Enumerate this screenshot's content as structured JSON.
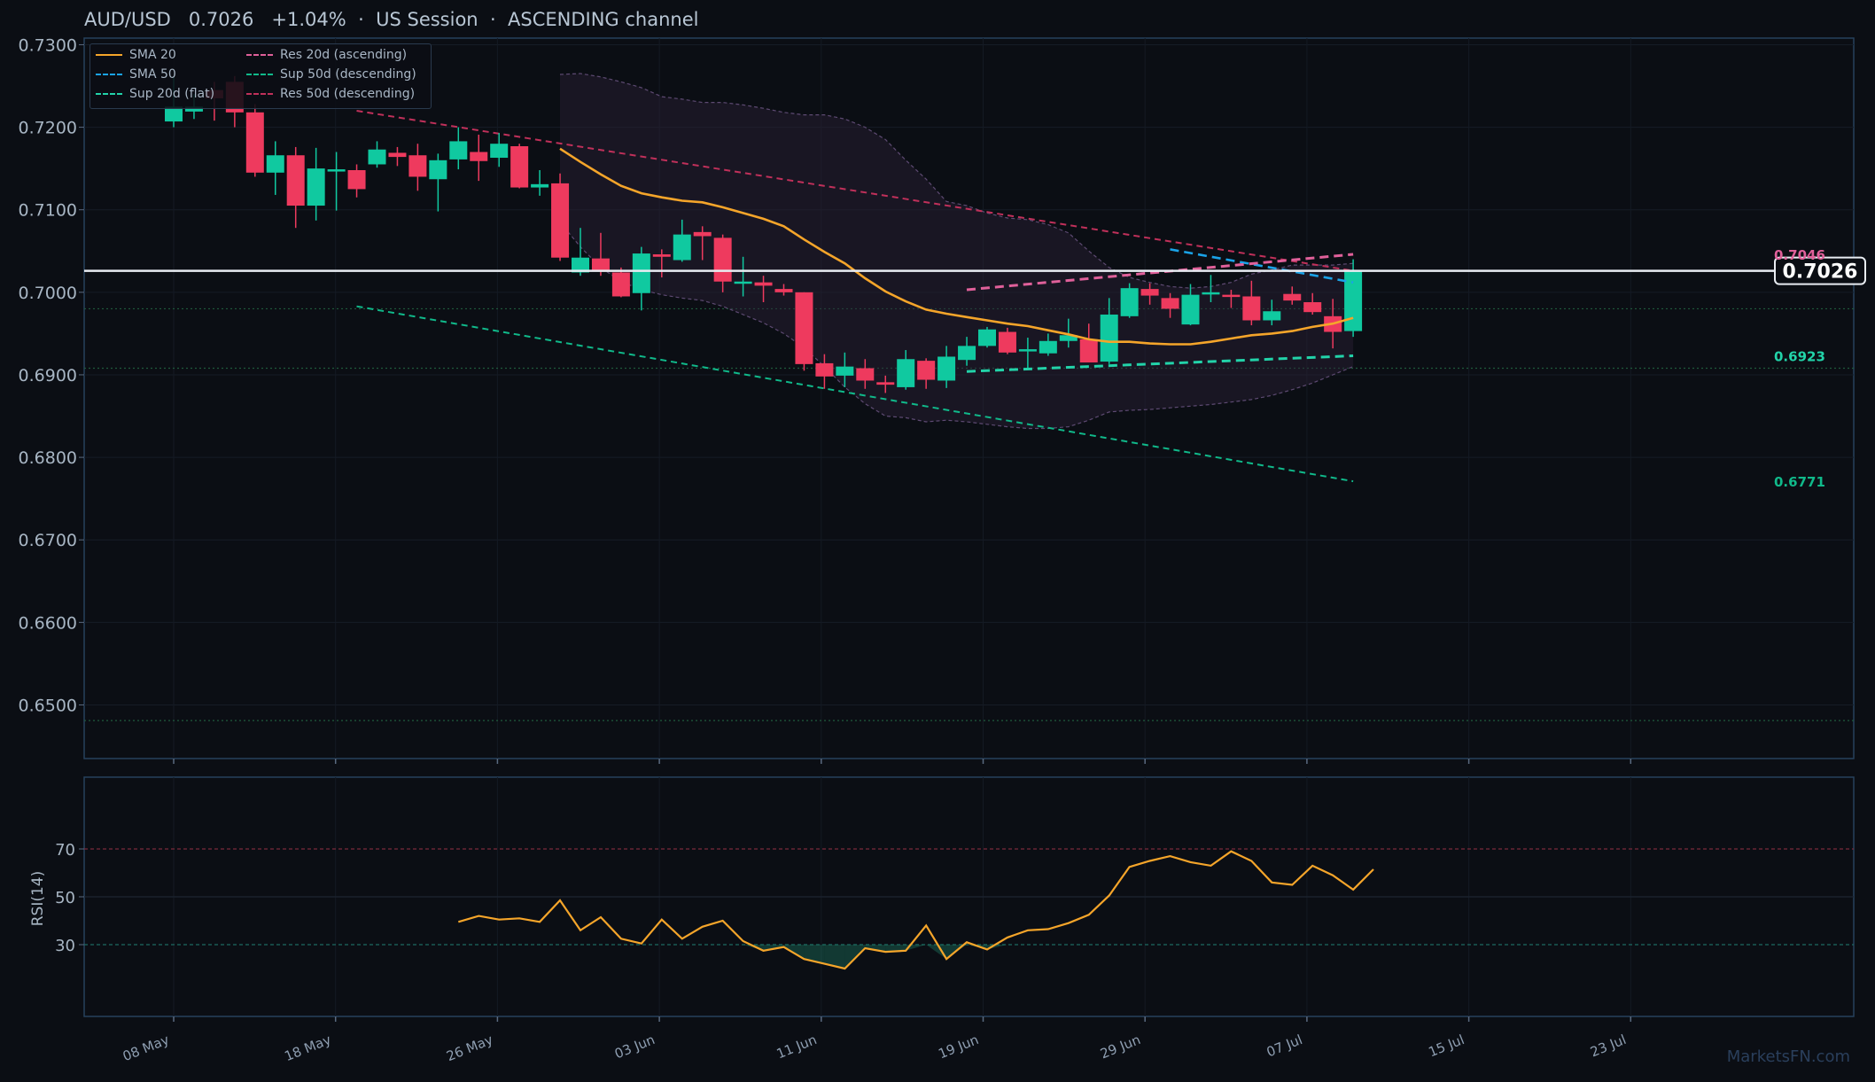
{
  "header": {
    "symbol": "AUD/USD",
    "price": "0.7026",
    "change": "+1.04%",
    "session": "US Session",
    "channel": "ASCENDING channel"
  },
  "watermark": "MarketsFN.com",
  "colors": {
    "background": "#0b0e14",
    "up": "#10c9a0",
    "down": "#ee3a5e",
    "sma20": "#f5a52a",
    "sma50": "#1aa3e8",
    "res_asc": "#e0609a",
    "sup_flat": "#22d3a9",
    "sup50_desc": "#10b98a",
    "res50_desc": "#c0305a",
    "rsi": "#f5a52a",
    "band_fill": "#2a2236"
  },
  "chart_data": {
    "type": "candlestick",
    "y_ticks": [
      "0.6500",
      "0.6600",
      "0.6700",
      "0.6800",
      "0.6900",
      "0.7000",
      "0.7100",
      "0.7200",
      "0.7300"
    ],
    "ylim": [
      0.6435,
      0.7308
    ],
    "date_ticks": [
      "08 May",
      "18 May",
      "26 May",
      "03 Jun",
      "11 Jun",
      "19 Jun",
      "29 Jun",
      "07 Jul",
      "15 Jul",
      "23 Jul"
    ],
    "last_price": 0.7026,
    "price_label": "0.7026",
    "line_labels": [
      {
        "text": "0.7046",
        "price": 0.7046,
        "series": "res_asc"
      },
      {
        "text": "0.6923",
        "price": 0.6923,
        "series": "sup_flat"
      },
      {
        "text": "0.6771",
        "price": 0.6771,
        "series": "sup50_desc"
      }
    ],
    "horizontal_levels": [
      0.698,
      0.6908,
      0.6481
    ],
    "legend": [
      {
        "label": "SMA 20",
        "key": "sma20",
        "style": "solid"
      },
      {
        "label": "SMA 50",
        "key": "sma50",
        "style": "dashed"
      },
      {
        "label": "Sup 20d (flat)",
        "key": "sup_flat",
        "style": "dashed"
      },
      {
        "label": "Res 20d (ascending)",
        "key": "res_asc",
        "style": "dashed"
      },
      {
        "label": "Sup 50d (descending)",
        "key": "sup50_desc",
        "style": "dashed"
      },
      {
        "label": "Res 50d (descending)",
        "key": "res50_desc",
        "style": "dashed"
      }
    ],
    "candles": [
      {
        "i": 0,
        "o": 0.7207,
        "h": 0.7262,
        "l": 0.72,
        "c": 0.7225
      },
      {
        "i": 1,
        "o": 0.7219,
        "h": 0.724,
        "l": 0.721,
        "c": 0.7225
      },
      {
        "i": 2,
        "o": 0.7245,
        "h": 0.7255,
        "l": 0.7208,
        "c": 0.7235
      },
      {
        "i": 3,
        "o": 0.7255,
        "h": 0.7262,
        "l": 0.72,
        "c": 0.7218
      },
      {
        "i": 4,
        "o": 0.7218,
        "h": 0.7228,
        "l": 0.714,
        "c": 0.7145
      },
      {
        "i": 5,
        "o": 0.7145,
        "h": 0.7183,
        "l": 0.7118,
        "c": 0.7166
      },
      {
        "i": 6,
        "o": 0.7166,
        "h": 0.7176,
        "l": 0.7078,
        "c": 0.7105
      },
      {
        "i": 7,
        "o": 0.7105,
        "h": 0.7175,
        "l": 0.7087,
        "c": 0.715
      },
      {
        "i": 8,
        "o": 0.7148,
        "h": 0.717,
        "l": 0.7099,
        "c": 0.7149
      },
      {
        "i": 9,
        "o": 0.7148,
        "h": 0.7155,
        "l": 0.7115,
        "c": 0.7125
      },
      {
        "i": 10,
        "o": 0.7155,
        "h": 0.7183,
        "l": 0.7151,
        "c": 0.7173
      },
      {
        "i": 11,
        "o": 0.7169,
        "h": 0.7176,
        "l": 0.7153,
        "c": 0.7164
      },
      {
        "i": 12,
        "o": 0.7166,
        "h": 0.718,
        "l": 0.7123,
        "c": 0.714
      },
      {
        "i": 13,
        "o": 0.7137,
        "h": 0.7168,
        "l": 0.7098,
        "c": 0.716
      },
      {
        "i": 14,
        "o": 0.7161,
        "h": 0.72,
        "l": 0.7149,
        "c": 0.7183
      },
      {
        "i": 15,
        "o": 0.717,
        "h": 0.7191,
        "l": 0.7135,
        "c": 0.7159
      },
      {
        "i": 16,
        "o": 0.7163,
        "h": 0.7193,
        "l": 0.7152,
        "c": 0.718
      },
      {
        "i": 17,
        "o": 0.7177,
        "h": 0.718,
        "l": 0.7126,
        "c": 0.7127
      },
      {
        "i": 18,
        "o": 0.7127,
        "h": 0.7148,
        "l": 0.7117,
        "c": 0.7131
      },
      {
        "i": 19,
        "o": 0.7132,
        "h": 0.7144,
        "l": 0.7038,
        "c": 0.7042
      },
      {
        "i": 20,
        "o": 0.7024,
        "h": 0.7078,
        "l": 0.702,
        "c": 0.7042
      },
      {
        "i": 21,
        "o": 0.7041,
        "h": 0.7072,
        "l": 0.702,
        "c": 0.7025
      },
      {
        "i": 22,
        "o": 0.7024,
        "h": 0.703,
        "l": 0.6994,
        "c": 0.6995
      },
      {
        "i": 23,
        "o": 0.6999,
        "h": 0.7055,
        "l": 0.6978,
        "c": 0.7047
      },
      {
        "i": 24,
        "o": 0.7046,
        "h": 0.7052,
        "l": 0.7018,
        "c": 0.7043
      },
      {
        "i": 25,
        "o": 0.7039,
        "h": 0.7088,
        "l": 0.7037,
        "c": 0.707
      },
      {
        "i": 26,
        "o": 0.7073,
        "h": 0.708,
        "l": 0.7039,
        "c": 0.7068
      },
      {
        "i": 27,
        "o": 0.7066,
        "h": 0.707,
        "l": 0.7,
        "c": 0.7013
      },
      {
        "i": 28,
        "o": 0.7013,
        "h": 0.7043,
        "l": 0.6995,
        "c": 0.7013
      },
      {
        "i": 29,
        "o": 0.7012,
        "h": 0.702,
        "l": 0.6988,
        "c": 0.7008
      },
      {
        "i": 30,
        "o": 0.7004,
        "h": 0.701,
        "l": 0.6996,
        "c": 0.7
      },
      {
        "i": 31,
        "o": 0.7,
        "h": 0.7,
        "l": 0.6905,
        "c": 0.6913
      },
      {
        "i": 32,
        "o": 0.6914,
        "h": 0.6925,
        "l": 0.6883,
        "c": 0.6898
      },
      {
        "i": 33,
        "o": 0.6899,
        "h": 0.6927,
        "l": 0.6885,
        "c": 0.691
      },
      {
        "i": 34,
        "o": 0.6908,
        "h": 0.6919,
        "l": 0.6883,
        "c": 0.6893
      },
      {
        "i": 35,
        "o": 0.6891,
        "h": 0.6899,
        "l": 0.6878,
        "c": 0.6888
      },
      {
        "i": 36,
        "o": 0.6885,
        "h": 0.693,
        "l": 0.6882,
        "c": 0.6919
      },
      {
        "i": 37,
        "o": 0.6917,
        "h": 0.692,
        "l": 0.6883,
        "c": 0.6894
      },
      {
        "i": 38,
        "o": 0.6893,
        "h": 0.6935,
        "l": 0.6884,
        "c": 0.6922
      },
      {
        "i": 39,
        "o": 0.6918,
        "h": 0.6946,
        "l": 0.6911,
        "c": 0.6935
      },
      {
        "i": 40,
        "o": 0.6935,
        "h": 0.6958,
        "l": 0.6933,
        "c": 0.6955
      },
      {
        "i": 41,
        "o": 0.6952,
        "h": 0.6957,
        "l": 0.6925,
        "c": 0.6927
      },
      {
        "i": 42,
        "o": 0.6929,
        "h": 0.6945,
        "l": 0.6908,
        "c": 0.6931
      },
      {
        "i": 43,
        "o": 0.6926,
        "h": 0.695,
        "l": 0.6923,
        "c": 0.6941
      },
      {
        "i": 44,
        "o": 0.6941,
        "h": 0.6968,
        "l": 0.6933,
        "c": 0.6948
      },
      {
        "i": 45,
        "o": 0.6943,
        "h": 0.6962,
        "l": 0.6915,
        "c": 0.6915
      },
      {
        "i": 46,
        "o": 0.6916,
        "h": 0.6993,
        "l": 0.6913,
        "c": 0.6973
      },
      {
        "i": 47,
        "o": 0.6971,
        "h": 0.7011,
        "l": 0.6969,
        "c": 0.7005
      },
      {
        "i": 48,
        "o": 0.7004,
        "h": 0.7011,
        "l": 0.6985,
        "c": 0.6996
      },
      {
        "i": 49,
        "o": 0.6993,
        "h": 0.6999,
        "l": 0.6969,
        "c": 0.698
      },
      {
        "i": 50,
        "o": 0.6961,
        "h": 0.701,
        "l": 0.696,
        "c": 0.6997
      },
      {
        "i": 51,
        "o": 0.6998,
        "h": 0.7021,
        "l": 0.6988,
        "c": 0.7
      },
      {
        "i": 52,
        "o": 0.6997,
        "h": 0.7003,
        "l": 0.6981,
        "c": 0.6995
      },
      {
        "i": 53,
        "o": 0.6995,
        "h": 0.7014,
        "l": 0.696,
        "c": 0.6966
      },
      {
        "i": 54,
        "o": 0.6966,
        "h": 0.6991,
        "l": 0.696,
        "c": 0.6977
      },
      {
        "i": 55,
        "o": 0.6998,
        "h": 0.7007,
        "l": 0.6985,
        "c": 0.699
      },
      {
        "i": 56,
        "o": 0.6988,
        "h": 0.6999,
        "l": 0.6973,
        "c": 0.6976
      },
      {
        "i": 57,
        "o": 0.6971,
        "h": 0.6992,
        "l": 0.6932,
        "c": 0.6952
      },
      {
        "i": 58,
        "o": 0.6953,
        "h": 0.704,
        "l": 0.6946,
        "c": 0.7026
      }
    ],
    "sma20": [
      [
        19,
        0.7174
      ],
      [
        20,
        0.7158
      ],
      [
        21,
        0.7143
      ],
      [
        22,
        0.7129
      ],
      [
        23,
        0.712
      ],
      [
        24,
        0.7115
      ],
      [
        25,
        0.7111
      ],
      [
        26,
        0.7109
      ],
      [
        27,
        0.7103
      ],
      [
        28,
        0.7096
      ],
      [
        29,
        0.7089
      ],
      [
        30,
        0.708
      ],
      [
        31,
        0.7064
      ],
      [
        32,
        0.7049
      ],
      [
        33,
        0.7035
      ],
      [
        34,
        0.7017
      ],
      [
        35,
        0.7001
      ],
      [
        36,
        0.6989
      ],
      [
        37,
        0.6979
      ],
      [
        38,
        0.6974
      ],
      [
        39,
        0.697
      ],
      [
        40,
        0.6966
      ],
      [
        41,
        0.6962
      ],
      [
        42,
        0.6959
      ],
      [
        43,
        0.6954
      ],
      [
        44,
        0.6949
      ],
      [
        45,
        0.6943
      ],
      [
        46,
        0.694
      ],
      [
        47,
        0.694
      ],
      [
        48,
        0.6938
      ],
      [
        49,
        0.6937
      ],
      [
        50,
        0.6937
      ],
      [
        51,
        0.694
      ],
      [
        52,
        0.6944
      ],
      [
        53,
        0.6948
      ],
      [
        54,
        0.695
      ],
      [
        55,
        0.6953
      ],
      [
        56,
        0.6958
      ],
      [
        57,
        0.6962
      ],
      [
        58,
        0.6969
      ]
    ],
    "sma50": [
      [
        49,
        0.7052
      ],
      [
        58,
        0.7012
      ]
    ],
    "res_asc": [
      [
        39,
        0.7003
      ],
      [
        58,
        0.7046
      ]
    ],
    "sup_flat": [
      [
        39,
        0.6904
      ],
      [
        58,
        0.6923
      ]
    ],
    "sup50_desc": [
      [
        9,
        0.6983
      ],
      [
        58,
        0.6771
      ]
    ],
    "res50_desc": [
      [
        9,
        0.722
      ],
      [
        58,
        0.7026
      ]
    ],
    "band_upper": [
      [
        19,
        0.7264
      ],
      [
        20,
        0.7265
      ],
      [
        21,
        0.7261
      ],
      [
        22,
        0.7255
      ],
      [
        23,
        0.7248
      ],
      [
        24,
        0.7237
      ],
      [
        25,
        0.7234
      ],
      [
        26,
        0.723
      ],
      [
        27,
        0.723
      ],
      [
        28,
        0.7227
      ],
      [
        29,
        0.7223
      ],
      [
        30,
        0.7218
      ],
      [
        31,
        0.7215
      ],
      [
        32,
        0.7215
      ],
      [
        33,
        0.721
      ],
      [
        34,
        0.72
      ],
      [
        35,
        0.7185
      ],
      [
        36,
        0.716
      ],
      [
        37,
        0.7137
      ],
      [
        38,
        0.711
      ],
      [
        39,
        0.7105
      ],
      [
        40,
        0.7096
      ],
      [
        41,
        0.709
      ],
      [
        42,
        0.7088
      ],
      [
        43,
        0.7082
      ],
      [
        44,
        0.7072
      ],
      [
        45,
        0.705
      ],
      [
        46,
        0.703
      ],
      [
        47,
        0.7018
      ],
      [
        48,
        0.7012
      ],
      [
        49,
        0.7007
      ],
      [
        50,
        0.7005
      ],
      [
        51,
        0.7007
      ],
      [
        52,
        0.7012
      ],
      [
        53,
        0.7022
      ],
      [
        54,
        0.7027
      ],
      [
        55,
        0.7033
      ],
      [
        56,
        0.7033
      ],
      [
        57,
        0.7033
      ],
      [
        58,
        0.7035
      ]
    ],
    "band_lower": [
      [
        19,
        0.7085
      ],
      [
        20,
        0.7055
      ],
      [
        21,
        0.703
      ],
      [
        22,
        0.7013
      ],
      [
        23,
        0.7003
      ],
      [
        24,
        0.6997
      ],
      [
        25,
        0.6993
      ],
      [
        26,
        0.699
      ],
      [
        27,
        0.6983
      ],
      [
        28,
        0.6973
      ],
      [
        29,
        0.6963
      ],
      [
        30,
        0.695
      ],
      [
        31,
        0.6933
      ],
      [
        32,
        0.691
      ],
      [
        33,
        0.6885
      ],
      [
        34,
        0.6865
      ],
      [
        35,
        0.685
      ],
      [
        36,
        0.6848
      ],
      [
        37,
        0.6843
      ],
      [
        38,
        0.6845
      ],
      [
        39,
        0.6843
      ],
      [
        40,
        0.684
      ],
      [
        41,
        0.6837
      ],
      [
        42,
        0.6835
      ],
      [
        43,
        0.6835
      ],
      [
        44,
        0.6837
      ],
      [
        45,
        0.6845
      ],
      [
        46,
        0.6855
      ],
      [
        47,
        0.6857
      ],
      [
        48,
        0.6858
      ],
      [
        49,
        0.686
      ],
      [
        50,
        0.6862
      ],
      [
        51,
        0.6864
      ],
      [
        52,
        0.6867
      ],
      [
        53,
        0.687
      ],
      [
        54,
        0.6875
      ],
      [
        55,
        0.6882
      ],
      [
        56,
        0.689
      ],
      [
        57,
        0.69
      ],
      [
        58,
        0.691
      ]
    ],
    "rsi": {
      "ylabel": "RSI(14)",
      "ticks": [
        "30",
        "50",
        "70"
      ],
      "ylim": [
        0,
        100
      ],
      "values": [
        [
          14,
          39.5
        ],
        [
          15,
          42
        ],
        [
          16,
          40.5
        ],
        [
          17,
          41
        ],
        [
          18,
          39.5
        ],
        [
          19,
          48.5
        ],
        [
          20,
          36
        ],
        [
          21,
          41.5
        ],
        [
          22,
          32.5
        ],
        [
          23,
          30.5
        ],
        [
          24,
          40.5
        ],
        [
          25,
          32.5
        ],
        [
          26,
          37.5
        ],
        [
          27,
          40
        ],
        [
          28,
          31.5
        ],
        [
          29,
          27.5
        ],
        [
          30,
          29
        ],
        [
          31,
          24
        ],
        [
          32,
          22
        ],
        [
          33,
          20
        ],
        [
          34,
          28.5
        ],
        [
          35,
          27
        ],
        [
          36,
          27.5
        ],
        [
          37,
          38
        ],
        [
          38,
          24
        ],
        [
          39,
          31
        ],
        [
          40,
          28
        ],
        [
          41,
          33
        ],
        [
          42,
          36
        ],
        [
          43,
          36.5
        ],
        [
          44,
          39
        ],
        [
          45,
          42.5
        ],
        [
          46,
          50.5
        ],
        [
          47,
          62.5
        ],
        [
          48,
          65
        ],
        [
          49,
          67
        ],
        [
          50,
          64.5
        ],
        [
          51,
          63
        ],
        [
          52,
          69
        ],
        [
          53,
          65
        ],
        [
          54,
          56
        ],
        [
          55,
          55
        ],
        [
          56,
          63
        ],
        [
          57,
          59
        ],
        [
          58,
          53
        ],
        [
          59,
          61.5
        ]
      ]
    }
  }
}
